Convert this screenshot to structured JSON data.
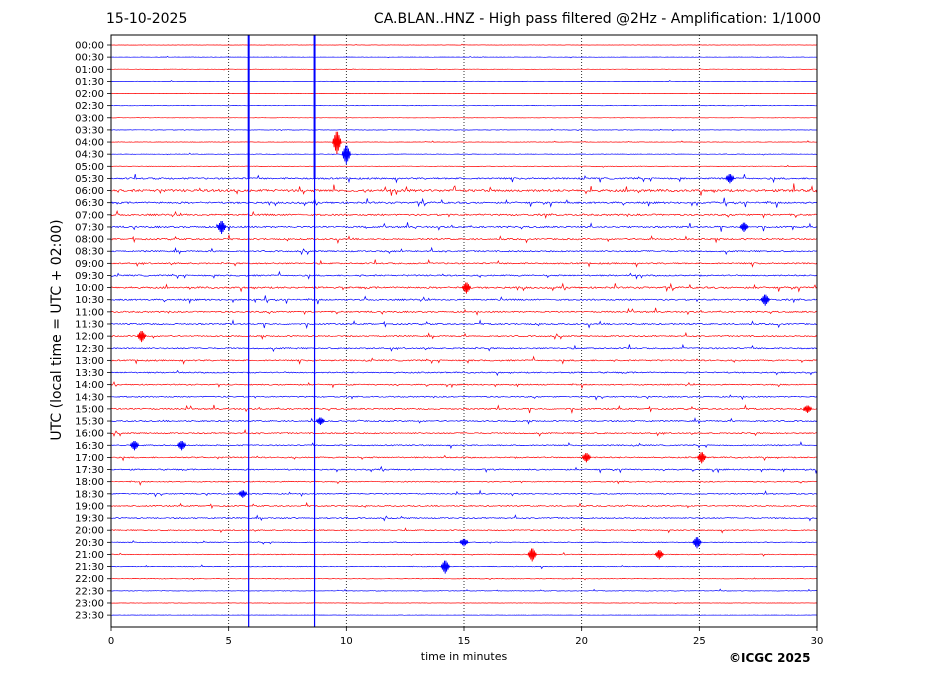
{
  "header": {
    "date": "15-10-2025",
    "title": "CA.BLAN..HNZ - High pass filtered @2Hz - Amplification: 1/1000"
  },
  "copyright": "©ICGC 2025",
  "chart_data": {
    "type": "line",
    "title": "CA.BLAN..HNZ - High pass filtered @2Hz - Amplification: 1/1000",
    "xlabel": "time in minutes",
    "ylabel": "UTC (local time = UTC + 02:00)",
    "xlim": [
      0,
      30
    ],
    "x_ticks": [
      0,
      5,
      10,
      15,
      20,
      25,
      30
    ],
    "grid": "vertical dotted lines at 5-minute intervals",
    "legend": "none",
    "row_labels": [
      "00:00",
      "00:30",
      "01:00",
      "01:30",
      "02:00",
      "02:30",
      "03:00",
      "03:30",
      "04:00",
      "04:30",
      "05:00",
      "05:30",
      "06:00",
      "06:30",
      "07:00",
      "07:30",
      "08:00",
      "08:30",
      "09:00",
      "09:30",
      "10:00",
      "10:30",
      "11:00",
      "11:30",
      "12:00",
      "12:30",
      "13:00",
      "13:30",
      "14:00",
      "14:30",
      "15:00",
      "15:30",
      "16:00",
      "16:30",
      "17:00",
      "17:30",
      "18:00",
      "18:30",
      "19:00",
      "19:30",
      "20:00",
      "20:30",
      "21:00",
      "21:30",
      "22:00",
      "22:30",
      "23:00",
      "23:30"
    ],
    "trace_colors": [
      "#ff0000",
      "#0000ff"
    ],
    "noise_level": [
      0.3,
      0.3,
      0.3,
      0.3,
      0.3,
      0.3,
      0.3,
      0.4,
      0.4,
      0.4,
      0.5,
      1.5,
      2.2,
      1.6,
      1.6,
      1.5,
      1.4,
      1.3,
      1.3,
      1.3,
      1.6,
      1.4,
      1.3,
      1.3,
      1.2,
      1.3,
      1.3,
      1.2,
      1.1,
      1.1,
      1.3,
      1.2,
      1.2,
      1.1,
      1.2,
      1.2,
      1.0,
      1.0,
      1.1,
      1.1,
      1.0,
      0.8,
      0.8,
      0.6,
      0.5,
      0.5,
      0.3,
      0.3
    ],
    "vertical_events": [
      {
        "x": 5.85,
        "from_row": "00:00",
        "to_row": "23:30",
        "color": "#0000ff"
      },
      {
        "x": 8.65,
        "from_row": "00:00",
        "to_row": "23:30",
        "color": "#0000ff"
      }
    ],
    "events": [
      {
        "row": "04:00",
        "x": 9.6,
        "amp": 12
      },
      {
        "row": "04:30",
        "x": 10.0,
        "amp": 10
      },
      {
        "row": "10:00",
        "x": 15.1,
        "amp": 6
      },
      {
        "row": "10:30",
        "x": 27.8,
        "amp": 6
      },
      {
        "row": "12:00",
        "x": 1.3,
        "amp": 6
      },
      {
        "row": "16:30",
        "x": 1.0,
        "amp": 5
      },
      {
        "row": "16:30",
        "x": 3.0,
        "amp": 5
      },
      {
        "row": "17:00",
        "x": 20.2,
        "amp": 5
      },
      {
        "row": "17:00",
        "x": 25.1,
        "amp": 6
      },
      {
        "row": "20:30",
        "x": 24.9,
        "amp": 6
      },
      {
        "row": "20:30",
        "x": 15.0,
        "amp": 4
      },
      {
        "row": "21:00",
        "x": 17.9,
        "amp": 7
      },
      {
        "row": "21:00",
        "x": 23.3,
        "amp": 5
      },
      {
        "row": "21:30",
        "x": 14.2,
        "amp": 7
      },
      {
        "row": "05:30",
        "x": 26.3,
        "amp": 5
      },
      {
        "row": "07:30",
        "x": 4.7,
        "amp": 7
      },
      {
        "row": "07:30",
        "x": 26.9,
        "amp": 5
      },
      {
        "row": "15:00",
        "x": 29.6,
        "amp": 4
      },
      {
        "row": "15:30",
        "x": 8.9,
        "amp": 4
      },
      {
        "row": "18:30",
        "x": 5.6,
        "amp": 4
      }
    ]
  }
}
